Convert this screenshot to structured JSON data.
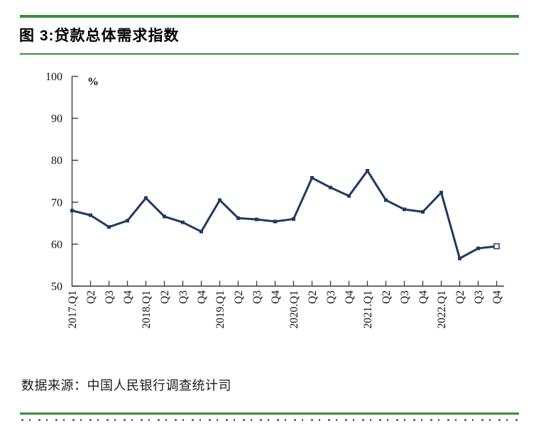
{
  "page": {
    "title": "图 3:贷款总体需求指数",
    "source_note": "数据来源：中国人民银行调查统计司",
    "accent_green": "#3A8C3A"
  },
  "chart_data": {
    "type": "line",
    "title": "图 3:贷款总体需求指数",
    "unit_label": "%",
    "categories": [
      "2017.Q1",
      "Q2",
      "Q3",
      "Q4",
      "2018.Q1",
      "Q2",
      "Q3",
      "Q4",
      "2019.Q1",
      "Q2",
      "Q3",
      "Q4",
      "2020.Q1",
      "Q2",
      "Q3",
      "Q4",
      "2021.Q1",
      "Q2",
      "Q3",
      "Q4",
      "2022.Q1",
      "Q2",
      "Q3",
      "Q4"
    ],
    "series": [
      {
        "name": "贷款总体需求指数",
        "values": [
          68.0,
          66.9,
          64.1,
          65.6,
          71.0,
          66.6,
          65.2,
          63.0,
          70.5,
          66.2,
          65.9,
          65.4,
          66.0,
          75.8,
          73.5,
          71.5,
          77.5,
          70.5,
          68.3,
          67.7,
          72.3,
          56.6,
          59.0,
          59.5
        ]
      }
    ],
    "ylim": [
      50,
      100
    ],
    "yticks": [
      50,
      60,
      70,
      80,
      90,
      100
    ],
    "grid": false,
    "legend": "none",
    "line_color": "#1F3A5F",
    "axis_color": "#3a3a3a",
    "marker": "filled-square",
    "last_marker": "hollow-square",
    "xlabel": "",
    "ylabel": "%"
  }
}
